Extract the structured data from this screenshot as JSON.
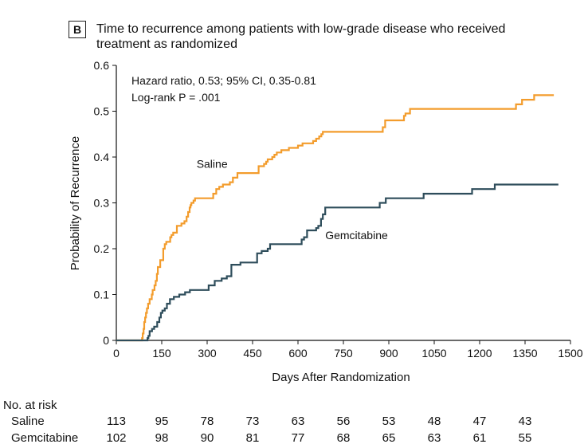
{
  "panel_label": "B",
  "title": "Time to recurrence among patients with low-grade disease who received treatment as randomized",
  "colors": {
    "saline": "#F39C2C",
    "gemcitabine": "#2E4D5B",
    "axis": "#111111"
  },
  "chart_data": {
    "type": "line",
    "step": "post",
    "title": "Time to recurrence among patients with low-grade disease who received treatment as randomized",
    "xlabel": "Days After Randomization",
    "ylabel": "Probability of Recurrence",
    "xlim": [
      0,
      1500
    ],
    "ylim": [
      0,
      0.6
    ],
    "xticks": [
      "0",
      "150",
      "300",
      "450",
      "600",
      "750",
      "900",
      "1050",
      "1200",
      "1350",
      "1500"
    ],
    "yticks": [
      "0",
      "0.1",
      "0.2",
      "0.3",
      "0.4",
      "0.5",
      "0.6"
    ],
    "annotation_lines": [
      "Hazard ratio, 0.53; 95% CI, 0.35-0.81",
      "Log-rank P = .001"
    ],
    "series": [
      {
        "name": "Saline",
        "color": "#F39C2C",
        "x": [
          0,
          85,
          87,
          90,
          92,
          95,
          98,
          101,
          105,
          110,
          117,
          120,
          126,
          130,
          134,
          137,
          140,
          145,
          155,
          160,
          165,
          178,
          182,
          188,
          200,
          215,
          225,
          232,
          237,
          242,
          245,
          248,
          255,
          260,
          275,
          320,
          330,
          340,
          352,
          375,
          385,
          400,
          470,
          488,
          495,
          500,
          515,
          522,
          530,
          545,
          570,
          600,
          615,
          650,
          660,
          670,
          677,
          682,
          690,
          880,
          888,
          950,
          955,
          970,
          1005,
          1320,
          1340,
          1380,
          1440,
          1445
        ],
        "y": [
          0,
          0.005,
          0.015,
          0.025,
          0.04,
          0.05,
          0.06,
          0.07,
          0.08,
          0.09,
          0.1,
          0.11,
          0.12,
          0.13,
          0.145,
          0.16,
          0.16,
          0.175,
          0.2,
          0.21,
          0.215,
          0.225,
          0.23,
          0.235,
          0.25,
          0.255,
          0.26,
          0.27,
          0.28,
          0.29,
          0.295,
          0.3,
          0.305,
          0.31,
          0.31,
          0.32,
          0.33,
          0.335,
          0.34,
          0.345,
          0.355,
          0.365,
          0.38,
          0.385,
          0.39,
          0.395,
          0.4,
          0.405,
          0.41,
          0.415,
          0.42,
          0.425,
          0.43,
          0.435,
          0.44,
          0.445,
          0.45,
          0.455,
          0.455,
          0.465,
          0.48,
          0.49,
          0.495,
          0.505,
          0.505,
          0.515,
          0.525,
          0.535,
          0.535,
          0.535
        ]
      },
      {
        "name": "Gemcitabine",
        "color": "#2E4D5B",
        "x": [
          0,
          103,
          106,
          110,
          118,
          125,
          135,
          142,
          147,
          152,
          160,
          167,
          177,
          190,
          208,
          227,
          243,
          305,
          325,
          348,
          365,
          380,
          410,
          465,
          480,
          500,
          508,
          612,
          620,
          630,
          660,
          667,
          676,
          682,
          690,
          855,
          870,
          890,
          1000,
          1015,
          1030,
          1175,
          1190,
          1250,
          1262,
          1460
        ],
        "y": [
          0,
          0.005,
          0.01,
          0.02,
          0.025,
          0.03,
          0.04,
          0.05,
          0.06,
          0.065,
          0.07,
          0.08,
          0.09,
          0.095,
          0.1,
          0.105,
          0.11,
          0.12,
          0.13,
          0.135,
          0.14,
          0.165,
          0.17,
          0.19,
          0.195,
          0.2,
          0.21,
          0.22,
          0.225,
          0.24,
          0.245,
          0.25,
          0.265,
          0.275,
          0.29,
          0.29,
          0.3,
          0.31,
          0.31,
          0.32,
          0.32,
          0.33,
          0.33,
          0.34,
          0.34,
          0.34
        ]
      }
    ],
    "series_labels": [
      {
        "text": "Saline",
        "x": 265,
        "y": 0.385
      },
      {
        "text": "Gemcitabine",
        "x": 690,
        "y": 0.23
      }
    ],
    "risk_table": {
      "header": "No. at risk",
      "times": [
        0,
        150,
        300,
        450,
        600,
        750,
        900,
        1050,
        1200,
        1350
      ],
      "rows": [
        {
          "label": "Saline",
          "values": [
            "113",
            "95",
            "78",
            "73",
            "63",
            "56",
            "53",
            "48",
            "47",
            "43"
          ]
        },
        {
          "label": "Gemcitabine",
          "values": [
            "102",
            "98",
            "90",
            "81",
            "77",
            "68",
            "65",
            "63",
            "61",
            "55"
          ]
        }
      ]
    }
  }
}
